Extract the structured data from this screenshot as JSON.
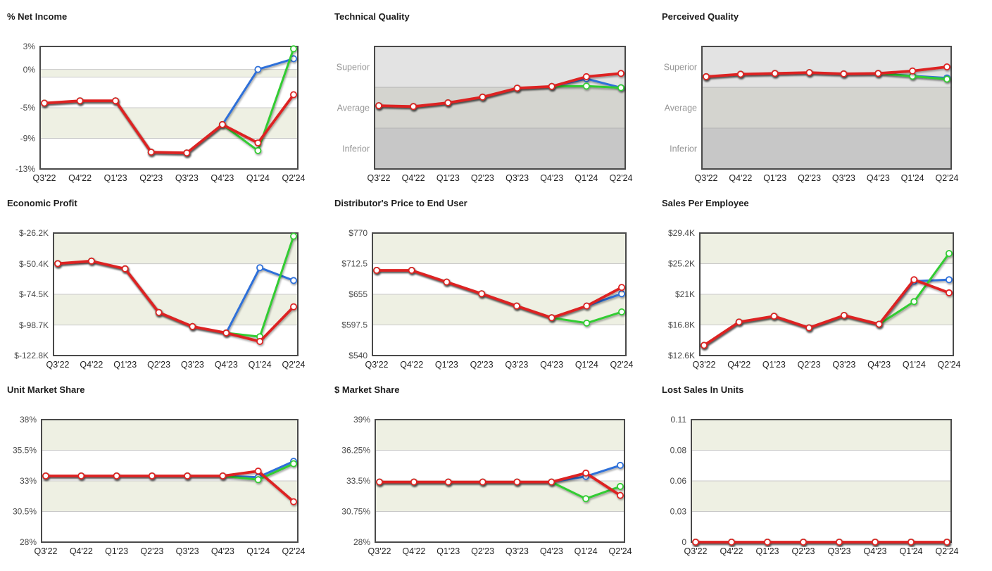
{
  "page": {
    "background": "#ffffff"
  },
  "colors": {
    "plot_border": "#4a4a4a",
    "grid_line": "#c9c9c9",
    "band_beige": "#eef0e3",
    "quality_band_superior": "#e3e3e3",
    "quality_band_average": "#d4d4cf",
    "quality_band_inferior": "#c7c7c7",
    "series": {
      "blue": "#2e6fd9",
      "green": "#33cc33",
      "red": "#dd2222"
    },
    "marker_fill": "#ffffff",
    "title_text": "#1d1d1d",
    "axis_text": "#4a4a4a",
    "quality_axis_text": "#979797",
    "x_axis_text": "#222222"
  },
  "categories": [
    "Q3'22",
    "Q4'22",
    "Q1'23",
    "Q2'23",
    "Q3'23",
    "Q4'23",
    "Q1'24",
    "Q2'24"
  ],
  "chart_data": [
    {
      "title": "% Net Income",
      "type": "line",
      "ylim": [
        -13,
        3
      ],
      "y_ticks": [
        {
          "v": 3,
          "label": "3%"
        },
        {
          "v": 0,
          "label": "0%"
        },
        {
          "v": -5,
          "label": "-5%"
        },
        {
          "v": -9,
          "label": "-9%"
        },
        {
          "v": -13,
          "label": "-13%"
        }
      ],
      "gridlines": [
        0,
        -1,
        -5,
        -9
      ],
      "bands": [
        {
          "from": 0,
          "to": -1,
          "style": "beige"
        },
        {
          "from": -5,
          "to": -9,
          "style": "beige"
        }
      ],
      "series": [
        {
          "name": "blue",
          "values": [
            -4.4,
            -4.1,
            -4.1,
            -10.8,
            -10.9,
            -7.2,
            0.0,
            1.4
          ]
        },
        {
          "name": "green",
          "values": [
            -4.4,
            -4.1,
            -4.1,
            -10.8,
            -10.9,
            -7.2,
            -10.6,
            2.7
          ]
        },
        {
          "name": "red",
          "values": [
            -4.4,
            -4.1,
            -4.1,
            -10.8,
            -10.9,
            -7.2,
            -9.6,
            -3.3
          ]
        }
      ]
    },
    {
      "title": "Technical Quality",
      "type": "line",
      "ylim": [
        0,
        3
      ],
      "y_ticks": [
        {
          "v": 2.5,
          "label": "Superior"
        },
        {
          "v": 1.5,
          "label": "Average"
        },
        {
          "v": 0.5,
          "label": "Inferior"
        }
      ],
      "gridlines": [
        2,
        1
      ],
      "bands": [
        {
          "from": 3,
          "to": 2,
          "style": "q0"
        },
        {
          "from": 2,
          "to": 1,
          "style": "q1"
        },
        {
          "from": 1,
          "to": 0,
          "style": "q2"
        }
      ],
      "series": [
        {
          "name": "blue",
          "values": [
            1.55,
            1.53,
            1.62,
            1.76,
            1.98,
            2.02,
            2.21,
            1.99
          ]
        },
        {
          "name": "green",
          "values": [
            1.55,
            1.53,
            1.62,
            1.76,
            1.98,
            2.02,
            2.03,
            1.99
          ]
        },
        {
          "name": "red",
          "values": [
            1.55,
            1.53,
            1.62,
            1.76,
            1.98,
            2.02,
            2.26,
            2.34
          ]
        }
      ]
    },
    {
      "title": "Perceived Quality",
      "type": "line",
      "ylim": [
        0,
        3
      ],
      "y_ticks": [
        {
          "v": 2.5,
          "label": "Superior"
        },
        {
          "v": 1.5,
          "label": "Average"
        },
        {
          "v": 0.5,
          "label": "Inferior"
        }
      ],
      "gridlines": [
        2,
        1
      ],
      "bands": [
        {
          "from": 3,
          "to": 2,
          "style": "q0"
        },
        {
          "from": 2,
          "to": 1,
          "style": "q1"
        },
        {
          "from": 1,
          "to": 0,
          "style": "q2"
        }
      ],
      "series": [
        {
          "name": "blue",
          "values": [
            2.26,
            2.32,
            2.34,
            2.36,
            2.33,
            2.34,
            2.28,
            2.23
          ]
        },
        {
          "name": "green",
          "values": [
            2.26,
            2.32,
            2.34,
            2.36,
            2.33,
            2.34,
            2.27,
            2.2
          ]
        },
        {
          "name": "red",
          "values": [
            2.26,
            2.32,
            2.34,
            2.36,
            2.33,
            2.34,
            2.4,
            2.5
          ]
        }
      ]
    },
    {
      "title": "Economic Profit",
      "type": "line",
      "ylim": [
        -122.8,
        -26.2
      ],
      "y_ticks": [
        {
          "v": -26.2,
          "label": "$-26.2K"
        },
        {
          "v": -50.4,
          "label": "$-50.4K"
        },
        {
          "v": -74.5,
          "label": "$-74.5K"
        },
        {
          "v": -98.7,
          "label": "$-98.7K"
        },
        {
          "v": -122.8,
          "label": "$-122.8K"
        }
      ],
      "gridlines": [
        -50.4,
        -74.5,
        -98.7
      ],
      "bands": [
        {
          "from": -26.2,
          "to": -50.4,
          "style": "beige"
        },
        {
          "from": -74.5,
          "to": -98.7,
          "style": "beige"
        }
      ],
      "series": [
        {
          "name": "blue",
          "values": [
            -50.3,
            -48.3,
            -54.4,
            -88.8,
            -99.9,
            -105.0,
            -53.5,
            -63.6
          ]
        },
        {
          "name": "green",
          "values": [
            -50.3,
            -48.3,
            -54.4,
            -88.8,
            -99.9,
            -105.0,
            -107.9,
            -28.7
          ]
        },
        {
          "name": "red",
          "values": [
            -50.3,
            -48.3,
            -54.4,
            -88.8,
            -99.9,
            -105.0,
            -111.7,
            -84.3
          ]
        }
      ]
    },
    {
      "title": "Distributor's Price to End User",
      "type": "line",
      "ylim": [
        540,
        770
      ],
      "y_ticks": [
        {
          "v": 770,
          "label": "$770"
        },
        {
          "v": 712.5,
          "label": "$712.5"
        },
        {
          "v": 655,
          "label": "$655"
        },
        {
          "v": 597.5,
          "label": "$597.5"
        },
        {
          "v": 540,
          "label": "$540"
        }
      ],
      "gridlines": [
        712.5,
        655,
        597.5
      ],
      "bands": [
        {
          "from": 770,
          "to": 712.5,
          "style": "beige"
        },
        {
          "from": 655,
          "to": 597.5,
          "style": "beige"
        }
      ],
      "series": [
        {
          "name": "blue",
          "values": [
            700,
            700,
            678,
            656,
            633,
            611,
            633,
            656
          ]
        },
        {
          "name": "green",
          "values": [
            700,
            700,
            678,
            656,
            633,
            611,
            601,
            622
          ]
        },
        {
          "name": "red",
          "values": [
            700,
            700,
            678,
            656,
            633,
            611,
            633,
            668
          ]
        }
      ]
    },
    {
      "title": "Sales Per Employee",
      "type": "line",
      "ylim": [
        12.6,
        29.4
      ],
      "y_ticks": [
        {
          "v": 29.4,
          "label": "$29.4K"
        },
        {
          "v": 25.2,
          "label": "$25.2K"
        },
        {
          "v": 21,
          "label": "$21K"
        },
        {
          "v": 16.8,
          "label": "$16.8K"
        },
        {
          "v": 12.6,
          "label": "$12.6K"
        }
      ],
      "gridlines": [
        25.2,
        21,
        16.8
      ],
      "bands": [
        {
          "from": 29.4,
          "to": 25.2,
          "style": "beige"
        },
        {
          "from": 21,
          "to": 16.8,
          "style": "beige"
        }
      ],
      "series": [
        {
          "name": "blue",
          "values": [
            14.0,
            17.2,
            18.0,
            16.4,
            18.1,
            16.9,
            22.8,
            23.0
          ]
        },
        {
          "name": "green",
          "values": [
            14.0,
            17.2,
            18.0,
            16.4,
            18.1,
            16.9,
            20.0,
            26.6
          ]
        },
        {
          "name": "red",
          "values": [
            14.0,
            17.2,
            18.0,
            16.4,
            18.1,
            16.9,
            23.0,
            21.2
          ]
        }
      ]
    },
    {
      "title": "Unit Market Share",
      "type": "line",
      "ylim": [
        28,
        38
      ],
      "y_ticks": [
        {
          "v": 38,
          "label": "38%"
        },
        {
          "v": 35.5,
          "label": "35.5%"
        },
        {
          "v": 33,
          "label": "33%"
        },
        {
          "v": 30.5,
          "label": "30.5%"
        },
        {
          "v": 28,
          "label": "28%"
        }
      ],
      "gridlines": [
        35.5,
        33,
        30.5
      ],
      "bands": [
        {
          "from": 38,
          "to": 35.5,
          "style": "beige"
        },
        {
          "from": 33,
          "to": 30.5,
          "style": "beige"
        }
      ],
      "series": [
        {
          "name": "blue",
          "values": [
            33.4,
            33.4,
            33.4,
            33.4,
            33.4,
            33.4,
            33.3,
            34.6
          ]
        },
        {
          "name": "green",
          "values": [
            33.4,
            33.4,
            33.4,
            33.4,
            33.4,
            33.4,
            33.1,
            34.4
          ]
        },
        {
          "name": "red",
          "values": [
            33.4,
            33.4,
            33.4,
            33.4,
            33.4,
            33.4,
            33.8,
            31.3
          ]
        }
      ]
    },
    {
      "title": "$ Market Share",
      "type": "line",
      "ylim": [
        28,
        39
      ],
      "y_ticks": [
        {
          "v": 39,
          "label": "39%"
        },
        {
          "v": 36.25,
          "label": "36.25%"
        },
        {
          "v": 33.5,
          "label": "33.5%"
        },
        {
          "v": 30.75,
          "label": "30.75%"
        },
        {
          "v": 28,
          "label": "28%"
        }
      ],
      "gridlines": [
        36.25,
        33.5,
        30.75
      ],
      "bands": [
        {
          "from": 39,
          "to": 36.25,
          "style": "beige"
        },
        {
          "from": 33.5,
          "to": 30.75,
          "style": "beige"
        }
      ],
      "series": [
        {
          "name": "blue",
          "values": [
            33.4,
            33.4,
            33.4,
            33.4,
            33.4,
            33.4,
            33.9,
            34.9
          ]
        },
        {
          "name": "green",
          "values": [
            33.4,
            33.4,
            33.4,
            33.4,
            33.4,
            33.4,
            31.9,
            33.0
          ]
        },
        {
          "name": "red",
          "values": [
            33.4,
            33.4,
            33.4,
            33.4,
            33.4,
            33.4,
            34.2,
            32.2
          ]
        }
      ]
    },
    {
      "title": "Lost Sales In Units",
      "type": "line",
      "ylim": [
        0,
        0.11
      ],
      "y_ticks": [
        {
          "v": 0.11,
          "label": "0.11"
        },
        {
          "v": 0.0825,
          "label": "0.08"
        },
        {
          "v": 0.055,
          "label": "0.06"
        },
        {
          "v": 0.0275,
          "label": "0.03"
        },
        {
          "v": 0,
          "label": "0"
        }
      ],
      "gridlines": [
        0.0825,
        0.055,
        0.0275
      ],
      "bands": [
        {
          "from": 0.11,
          "to": 0.0825,
          "style": "beige"
        },
        {
          "from": 0.055,
          "to": 0.0275,
          "style": "beige"
        }
      ],
      "series": [
        {
          "name": "blue",
          "values": [
            0,
            0,
            0,
            0,
            0,
            0,
            0,
            0
          ]
        },
        {
          "name": "green",
          "values": [
            0,
            0,
            0,
            0,
            0,
            0,
            0,
            0
          ]
        },
        {
          "name": "red",
          "values": [
            0,
            0,
            0,
            0,
            0,
            0,
            0,
            0
          ]
        }
      ]
    }
  ]
}
